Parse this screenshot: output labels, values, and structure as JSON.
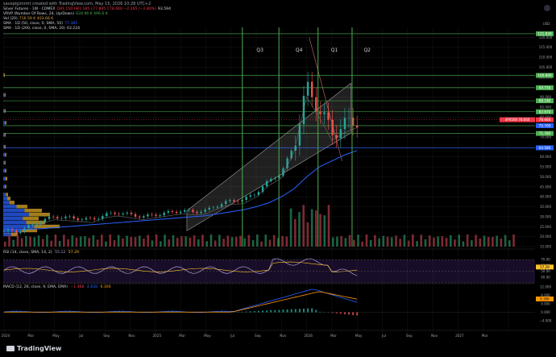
{
  "header": {
    "credit": "savepigimrmt created with TradingView.com, May 15, 2026 10:28 UTC+2",
    "legend": [
      {
        "label": "Silver Futures · 1W · COMEX",
        "values": "O81.150 H81.185 L77.895 C78.660 −2.265 (−2.80%)",
        "extra": "93.594",
        "color": "#d1d4dc"
      },
      {
        "label": "VRVP (Number Of Rows, 24, Up/Down)",
        "values": "628.96 K 496.6 K",
        "extra": "",
        "color": "#d1d4dc"
      },
      {
        "label": "Vol (20)",
        "values": "716.59 K 403.68 K",
        "extra": "",
        "color": "#d1d4dc"
      },
      {
        "label": "SMA · 1D (50, close, 0, SMA, 50)",
        "values": "77.385",
        "extra": "",
        "color": "#d1d4dc"
      },
      {
        "label": "SMA · 1D (200, close, 0, SMA, 20)",
        "values": "63.224",
        "extra": "",
        "color": "#d1d4dc"
      }
    ]
  },
  "top_right_badge": "",
  "quarters": [
    "Q3",
    "Q4",
    "Q1",
    "Q2"
  ],
  "price_axis": {
    "unit": "USD",
    "ticks": [
      "120.000",
      "115.000",
      "110.000",
      "105.000",
      "100.000",
      "95.000",
      "90.000",
      "85.000",
      "80.000",
      "75.000",
      "70.000",
      "65.000",
      "60.000",
      "55.000",
      "50.000",
      "45.000",
      "40.000",
      "35.000",
      "30.000",
      "25.000",
      "20.000",
      "15.000"
    ],
    "labels": [
      {
        "text": "121.830",
        "color": "#4caf50"
      },
      {
        "text": "100.890",
        "color": "#4caf50"
      },
      {
        "text": "94.730",
        "color": "#4caf50"
      },
      {
        "text": "88.180",
        "color": "#4caf50"
      },
      {
        "text": "82.670",
        "color": "#4caf50"
      },
      {
        "text": "78.660",
        "color": "#f23645"
      },
      {
        "text": "75.700",
        "color": "#2962ff"
      },
      {
        "text": "71.780",
        "color": "#4caf50"
      },
      {
        "text": "64.580",
        "color": "#2962ff"
      }
    ],
    "current_tag": "SPX500 78.660"
  },
  "rsi": {
    "legend": "RSI (14, close, SMA, 14, 2)",
    "value1": "55.12",
    "value2": "57.29",
    "ticks": [
      "70.00",
      "60.00",
      "50.00",
      "40.00"
    ]
  },
  "macd": {
    "legend": "MACD (12, 26, close, 9, EMA, EMA)",
    "value1": "−1.468",
    "value2": "4.838",
    "value3": "6.306",
    "ticks": [
      "12.000",
      "8.000",
      "4.000",
      "0.000",
      "−4.000"
    ]
  },
  "time_axis": [
    "2024",
    "Mar",
    "May",
    "Jul",
    "Sep",
    "Nov",
    "2025",
    "Mar",
    "May",
    "Jul",
    "Sep",
    "Nov",
    "2026",
    "Mar",
    "May",
    "Jul",
    "Sep",
    "Nov",
    "2027",
    "Mar"
  ],
  "brand": "TradingView",
  "chart_data": {
    "type": "line",
    "title": "",
    "xlabel": "",
    "ylabel": "",
    "ylim": [
      15,
      125
    ],
    "x": [
      "2024-01",
      "2024-02",
      "2024-03",
      "2024-04",
      "2024-05",
      "2024-06",
      "2024-07",
      "2024-08",
      "2024-09",
      "2024-10",
      "2024-11",
      "2024-12",
      "2025-01",
      "2025-02",
      "2025-03",
      "2025-04",
      "2025-05",
      "2025-06",
      "2025-07",
      "2025-08",
      "2025-09",
      "2025-10",
      "2025-11",
      "2025-12",
      "2026-01",
      "2026-02",
      "2026-03",
      "2026-04",
      "2026-05"
    ],
    "series": [
      {
        "name": "",
        "values": [
          23,
          22.5,
          25,
          28,
          30,
          29.5,
          29,
          28.5,
          31,
          32,
          31,
          30,
          31,
          32,
          33,
          32.5,
          33,
          36,
          38,
          38.5,
          42,
          48,
          52,
          66,
          95,
          84,
          72,
          76,
          78.66
        ]
      },
      {
        "name": "",
        "values": [
          24,
          23.8,
          23.7,
          24,
          24.5,
          25,
          25.5,
          26,
          26.5,
          27,
          27.5,
          28,
          28.5,
          29,
          29.5,
          30,
          30.5,
          31.5,
          32.5,
          33.5,
          35,
          37,
          40,
          44,
          50,
          55,
          58,
          61,
          63.2
        ]
      }
    ]
  }
}
